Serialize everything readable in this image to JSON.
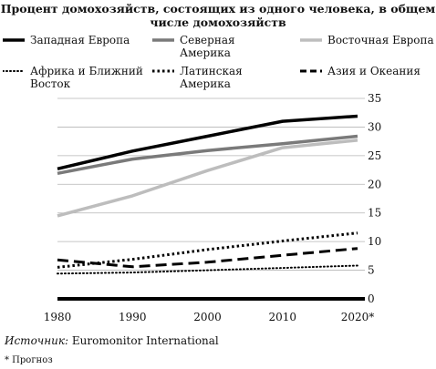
{
  "chart_data": {
    "type": "line",
    "title": "Процент домохозяйств, состоящих из одного человека, в общем числе домохозяйств",
    "x": [
      "1980",
      "1990",
      "2000",
      "2010",
      "2020*"
    ],
    "ylim": [
      0,
      35
    ],
    "yticks": [
      0,
      5,
      10,
      15,
      20,
      25,
      30,
      35
    ],
    "grid": "horizontal",
    "legend_position": "top",
    "y_axis_side": "right",
    "series": [
      {
        "name": "Западная Европа",
        "color": "#000000",
        "style": "solid-thick",
        "points": [
          [
            1980,
            22.7
          ],
          [
            1990,
            25.8
          ],
          [
            2000,
            28.4
          ],
          [
            2010,
            31.0
          ],
          [
            2020,
            31.9
          ]
        ]
      },
      {
        "name": "Северная Америка",
        "color": "#7a7a7a",
        "style": "solid-thick",
        "points": [
          [
            1980,
            21.9
          ],
          [
            1990,
            24.4
          ],
          [
            2000,
            25.9
          ],
          [
            2010,
            27.1
          ],
          [
            2020,
            28.4
          ]
        ]
      },
      {
        "name": "Восточная Европа",
        "color": "#bdbdbd",
        "style": "solid-thick",
        "points": [
          [
            1980,
            14.5
          ],
          [
            1990,
            18.0
          ],
          [
            2000,
            22.4
          ],
          [
            2010,
            26.4
          ],
          [
            2020,
            27.7
          ]
        ]
      },
      {
        "name": "Африка и Ближний Восток",
        "color": "#000000",
        "style": "dotted-fine",
        "points": [
          [
            1980,
            4.4
          ],
          [
            1990,
            4.6
          ],
          [
            2000,
            5.0
          ],
          [
            2010,
            5.4
          ],
          [
            2020,
            5.8
          ]
        ]
      },
      {
        "name": "Латинская Америка",
        "color": "#000000",
        "style": "dotted-bold",
        "points": [
          [
            1980,
            5.5
          ],
          [
            1990,
            6.9
          ],
          [
            2000,
            8.6
          ],
          [
            2010,
            10.1
          ],
          [
            2020,
            11.5
          ]
        ]
      },
      {
        "name": "Азия и Океания",
        "color": "#000000",
        "style": "dashed",
        "points": [
          [
            1980,
            6.8
          ],
          [
            1985,
            6.2
          ],
          [
            1990,
            5.6
          ],
          [
            2000,
            6.4
          ],
          [
            2010,
            7.6
          ],
          [
            2020,
            8.8
          ]
        ]
      }
    ]
  },
  "legend_labels": [
    "Западная Европа",
    "Северная\nАмерика",
    "Восточная Европа",
    "Африка и Ближний\nВосток",
    "Латинская\nАмерика",
    "Азия и Океания"
  ],
  "source": {
    "label": "Источник:",
    "text": " Euromonitor International"
  },
  "note": "* Прогноз"
}
